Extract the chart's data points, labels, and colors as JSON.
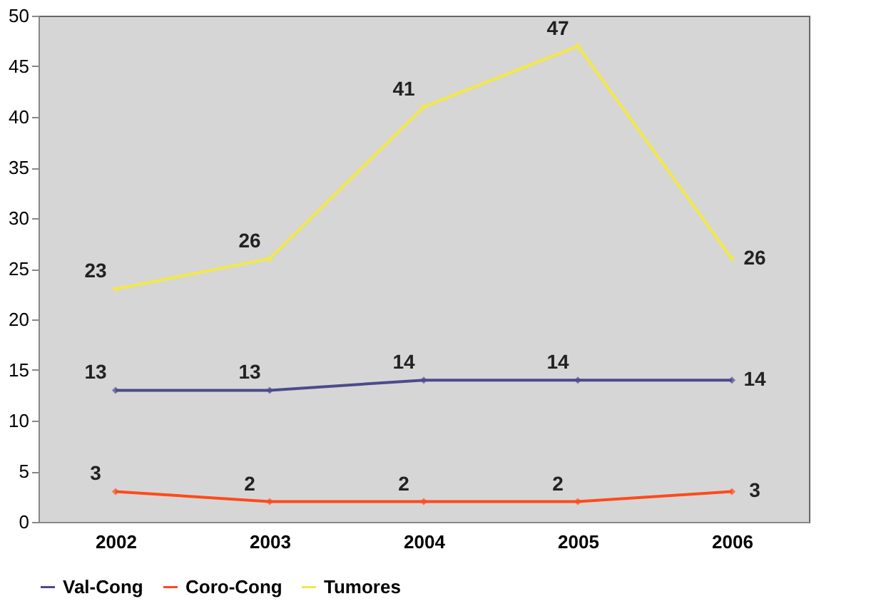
{
  "chart_data": {
    "type": "line",
    "categories": [
      "2002",
      "2003",
      "2004",
      "2005",
      "2006"
    ],
    "series": [
      {
        "name": "Val-Cong",
        "color": "#4b4b8c",
        "values": [
          13,
          13,
          14,
          14,
          14
        ]
      },
      {
        "name": "Coro-Cong",
        "color": "#ff4a1c",
        "values": [
          3,
          2,
          2,
          2,
          3
        ]
      },
      {
        "name": "Tumores",
        "color": "#f2e84a",
        "values": [
          23,
          26,
          41,
          47,
          26
        ]
      }
    ],
    "ylim": [
      0,
      50
    ],
    "yticks": [
      0,
      5,
      10,
      15,
      20,
      25,
      30,
      35,
      40,
      45,
      50
    ],
    "data_labels": true,
    "legend": "bottom",
    "marker": "diamond",
    "line_style": "solid",
    "grid": false
  }
}
